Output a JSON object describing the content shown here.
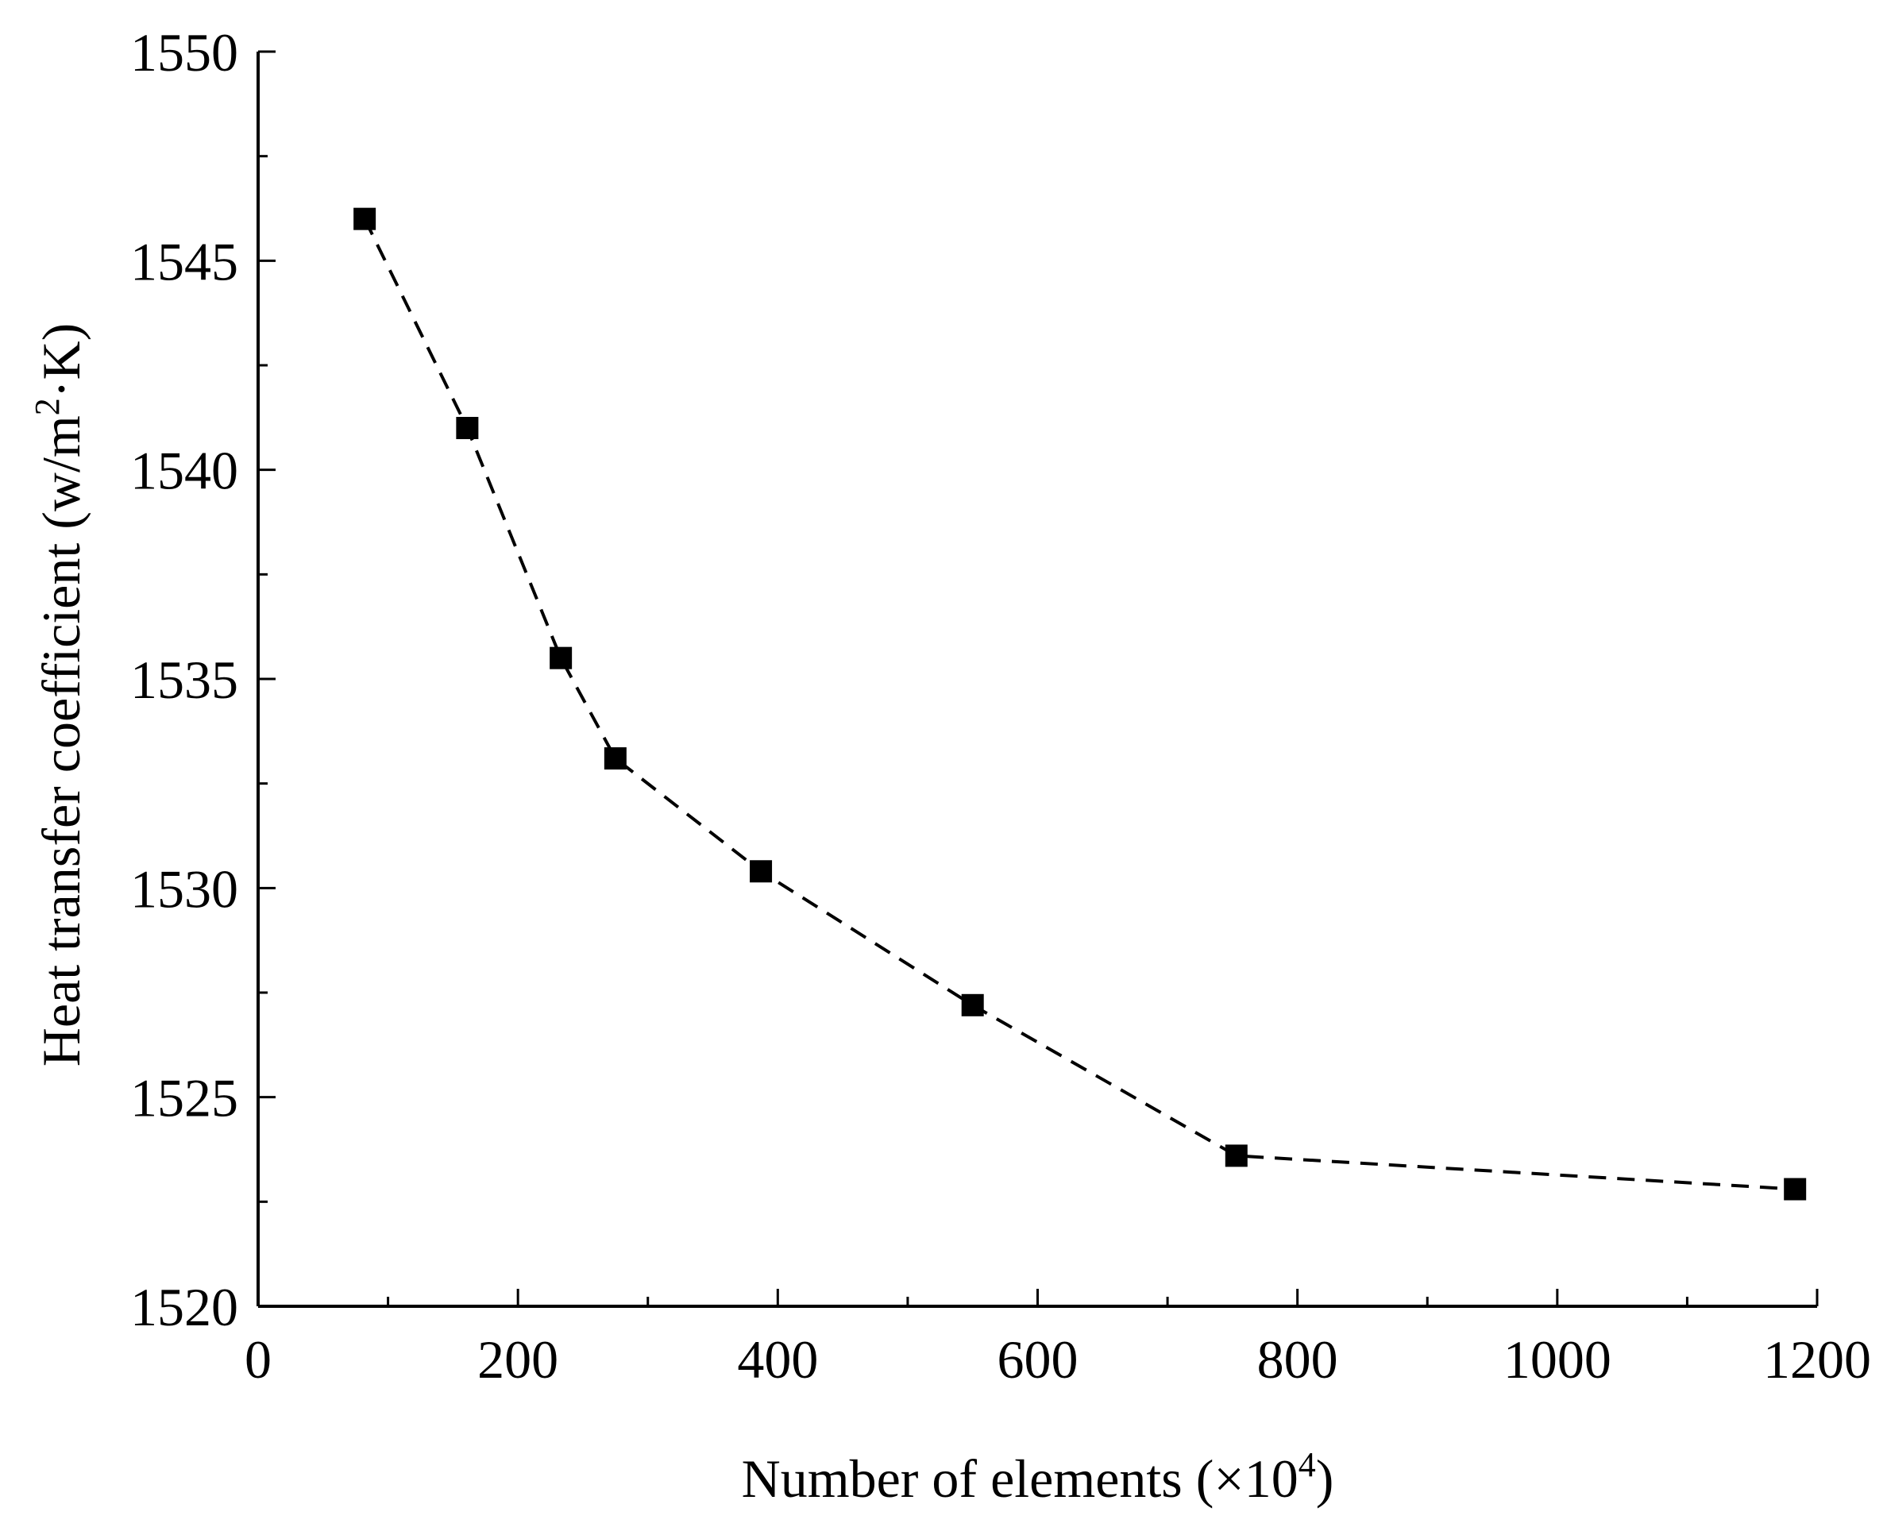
{
  "chart_data": {
    "type": "line",
    "title": "",
    "xlabel": {
      "text": "Number of elements (×10",
      "sup": "4",
      "suffix": ")"
    },
    "ylabel": {
      "text": "Heat transfer coefficient (w/m",
      "sup": "2",
      "suffix": "·K)"
    },
    "xlim": [
      0,
      1200
    ],
    "ylim": [
      1520,
      1550
    ],
    "xticks": [
      0,
      200,
      400,
      600,
      800,
      1000,
      1200
    ],
    "xticks_minor": [
      100,
      300,
      500,
      700,
      900,
      1100
    ],
    "yticks": [
      1520,
      1525,
      1530,
      1535,
      1540,
      1545,
      1550
    ],
    "yticks_minor": [
      1522.5,
      1527.5,
      1532.5,
      1537.5,
      1542.5,
      1547.5
    ],
    "grid": false,
    "marker": "square",
    "line_style": "dashed",
    "color": "#000000",
    "series": [
      {
        "x": [
          82,
          161,
          233,
          275,
          387,
          550,
          753,
          1183
        ],
        "y": [
          1546.0,
          1541.0,
          1535.5,
          1533.1,
          1530.4,
          1527.2,
          1523.6,
          1522.8
        ]
      }
    ]
  }
}
